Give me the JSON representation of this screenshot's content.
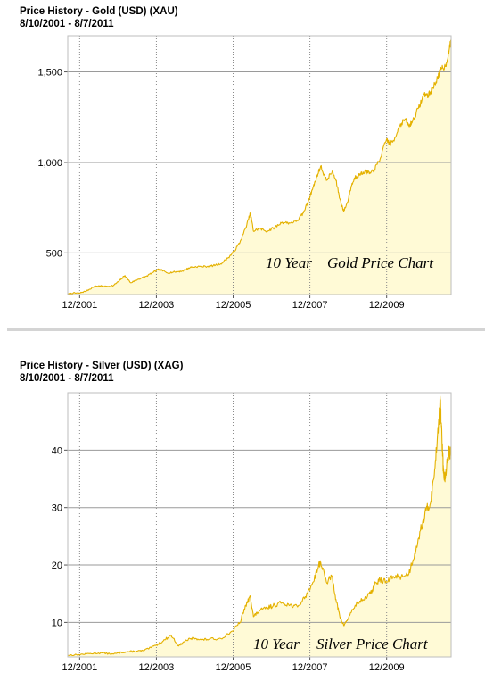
{
  "chart_data": [
    {
      "type": "area",
      "title": "Price History - Gold (USD) (XAU)",
      "subtitle": "8/10/2001 - 8/7/2011",
      "xlabel": "",
      "ylabel": "",
      "ylim": [
        270,
        1700
      ],
      "xlim": [
        2001.61,
        2011.6
      ],
      "yticks": [
        500,
        1000,
        1500
      ],
      "ytick_labels": [
        "500",
        "1,000",
        "1,500"
      ],
      "xticks": [
        2001.92,
        2003.92,
        2005.92,
        2007.92,
        2009.92
      ],
      "xtick_labels": [
        "12/2001",
        "12/2003",
        "12/2005",
        "12/2007",
        "12/2009"
      ],
      "grid": "horizontal solid at y ticks, vertical dotted at x ticks",
      "line_color": "#e4b100",
      "fill_color": "#fffad6",
      "annotation_left": "10 Year",
      "annotation_right": "Gold Price Chart",
      "series": [
        {
          "x": [
            2001.61,
            2001.75,
            2001.92,
            2002.1,
            2002.3,
            2002.45,
            2002.6,
            2002.8,
            2002.95,
            2003.1,
            2003.25,
            2003.45,
            2003.65,
            2003.85,
            2004.0,
            2004.2,
            2004.4,
            2004.6,
            2004.8,
            2005.0,
            2005.2,
            2005.4,
            2005.6,
            2005.8,
            2005.95,
            2006.1,
            2006.25,
            2006.37,
            2006.45,
            2006.6,
            2006.8,
            2007.0,
            2007.2,
            2007.4,
            2007.6,
            2007.75,
            2007.9,
            2008.0,
            2008.1,
            2008.2,
            2008.35,
            2008.5,
            2008.6,
            2008.7,
            2008.8,
            2008.9,
            2009.0,
            2009.1,
            2009.2,
            2009.35,
            2009.5,
            2009.6,
            2009.75,
            2009.92,
            2010.0,
            2010.1,
            2010.25,
            2010.4,
            2010.5,
            2010.6,
            2010.75,
            2010.9,
            2011.0,
            2011.1,
            2011.25,
            2011.35,
            2011.45,
            2011.55,
            2011.6
          ],
          "values": [
            272,
            278,
            278,
            290,
            315,
            318,
            315,
            320,
            345,
            375,
            335,
            355,
            370,
            395,
            410,
            390,
            395,
            400,
            420,
            425,
            425,
            430,
            440,
            475,
            510,
            560,
            640,
            720,
            620,
            635,
            620,
            640,
            670,
            665,
            680,
            720,
            800,
            860,
            920,
            980,
            900,
            950,
            900,
            800,
            730,
            780,
            870,
            920,
            930,
            950,
            940,
            960,
            1020,
            1130,
            1100,
            1120,
            1200,
            1240,
            1200,
            1230,
            1300,
            1380,
            1370,
            1400,
            1470,
            1520,
            1530,
            1620,
            1680
          ]
        }
      ]
    },
    {
      "type": "area",
      "title": "Price History - Silver (USD) (XAG)",
      "subtitle": "8/10/2001 - 8/7/2011",
      "xlabel": "",
      "ylabel": "",
      "ylim": [
        4,
        50
      ],
      "xlim": [
        2001.61,
        2011.6
      ],
      "yticks": [
        10,
        20,
        30,
        40
      ],
      "ytick_labels": [
        "10",
        "20",
        "30",
        "40"
      ],
      "xticks": [
        2001.92,
        2003.92,
        2005.92,
        2007.92,
        2009.92
      ],
      "xtick_labels": [
        "12/2001",
        "12/2003",
        "12/2005",
        "12/2007",
        "12/2009"
      ],
      "grid": "horizontal solid at y ticks, vertical dotted at x ticks",
      "line_color": "#e4b100",
      "fill_color": "#fffad6",
      "annotation_left": "10 Year",
      "annotation_right": "Silver Price Chart",
      "series": [
        {
          "x": [
            2001.61,
            2001.9,
            2002.2,
            2002.5,
            2002.8,
            2003.0,
            2003.2,
            2003.4,
            2003.6,
            2003.9,
            2004.1,
            2004.3,
            2004.5,
            2004.7,
            2004.9,
            2005.1,
            2005.3,
            2005.6,
            2005.9,
            2006.1,
            2006.25,
            2006.37,
            2006.45,
            2006.6,
            2006.8,
            2007.0,
            2007.2,
            2007.4,
            2007.6,
            2007.8,
            2008.0,
            2008.15,
            2008.2,
            2008.35,
            2008.5,
            2008.6,
            2008.7,
            2008.8,
            2008.9,
            2009.1,
            2009.3,
            2009.5,
            2009.6,
            2009.75,
            2009.92,
            2010.1,
            2010.3,
            2010.5,
            2010.65,
            2010.8,
            2010.95,
            2011.05,
            2011.15,
            2011.25,
            2011.32,
            2011.36,
            2011.4,
            2011.45,
            2011.5,
            2011.55,
            2011.6
          ],
          "values": [
            4.3,
            4.4,
            4.6,
            4.7,
            4.5,
            4.8,
            4.9,
            5.0,
            5.1,
            6.0,
            6.8,
            7.8,
            5.9,
            6.9,
            7.3,
            7.0,
            7.1,
            7.2,
            8.5,
            10.0,
            13.0,
            14.5,
            11.0,
            12.0,
            12.5,
            13.0,
            13.5,
            13.0,
            12.7,
            14.5,
            17.0,
            20.0,
            20.5,
            17.0,
            18.0,
            14.0,
            11.0,
            9.5,
            10.5,
            13.0,
            14.0,
            15.0,
            16.5,
            17.5,
            17.0,
            18.0,
            18.0,
            18.5,
            22.0,
            26.0,
            29.5,
            30.5,
            35.0,
            43.0,
            48.5,
            42.0,
            36.0,
            35.0,
            38.0,
            40.0,
            39.0
          ]
        }
      ]
    }
  ]
}
